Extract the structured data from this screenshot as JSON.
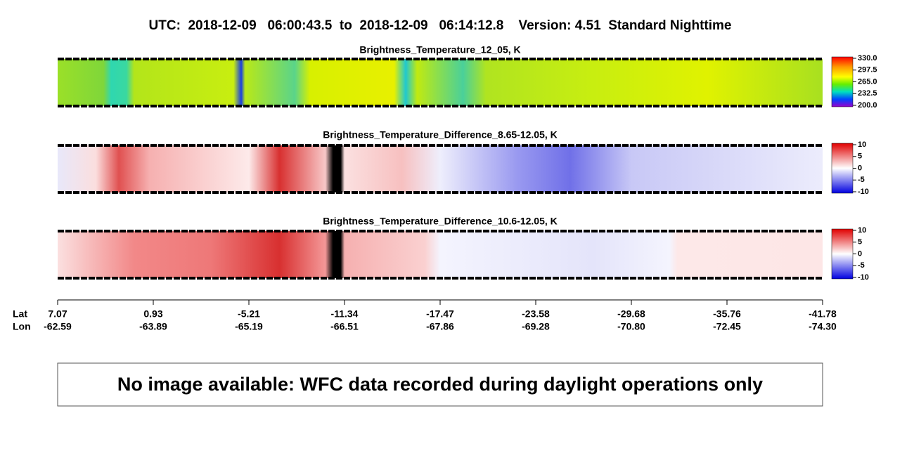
{
  "header": {
    "title": "UTC:  2018-12-09   06:00:43.5  to  2018-12-09   06:14:12.8    Version: 4.51  Standard Nighttime"
  },
  "panels": [
    {
      "title": "Brightness_Temperature_12_05, K",
      "colorbar_labels": [
        "330.0",
        "297.5",
        "265.0",
        "232.5",
        "200.0"
      ]
    },
    {
      "title": "Brightness_Temperature_Difference_8.65-12.05, K",
      "colorbar_labels": [
        "10",
        "5",
        "0",
        "-5",
        "-10"
      ]
    },
    {
      "title": "Brightness_Temperature_Difference_10.6-12.05, K",
      "colorbar_labels": [
        "10",
        "5",
        "0",
        "-5",
        "-10"
      ]
    }
  ],
  "axis": {
    "lat_label": "Lat",
    "lon_label": "Lon",
    "ticks": [
      {
        "lat": "7.07",
        "lon": "-62.59"
      },
      {
        "lat": "0.93",
        "lon": "-63.89"
      },
      {
        "lat": "-5.21",
        "lon": "-65.19"
      },
      {
        "lat": "-11.34",
        "lon": "-66.51"
      },
      {
        "lat": "-17.47",
        "lon": "-67.86"
      },
      {
        "lat": "-23.58",
        "lon": "-69.28"
      },
      {
        "lat": "-29.68",
        "lon": "-70.80"
      },
      {
        "lat": "-35.76",
        "lon": "-72.45"
      },
      {
        "lat": "-41.78",
        "lon": "-74.30"
      }
    ]
  },
  "message": "No image available: WFC data recorded during daylight operations only"
}
